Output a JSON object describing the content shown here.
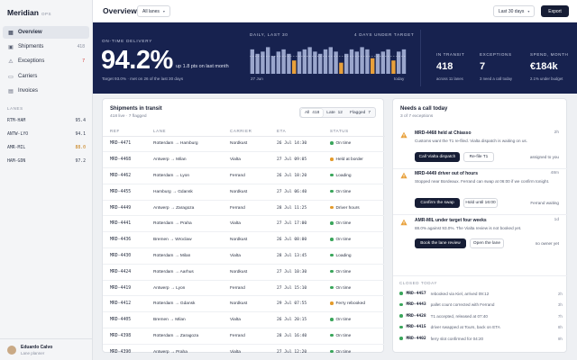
{
  "app": {
    "name": "Meridian",
    "suffix": "OPS"
  },
  "sidebar": {
    "items": [
      {
        "label": "Overview",
        "icon": "grid-icon",
        "count": "",
        "active": true
      },
      {
        "label": "Shipments",
        "icon": "box-icon",
        "count": "418",
        "active": false
      },
      {
        "label": "Exceptions",
        "icon": "warning-icon",
        "count": "7",
        "active": false,
        "count_color": "#d0322c"
      },
      {
        "label": "Carriers",
        "icon": "truck-icon",
        "count": "",
        "active": false
      },
      {
        "label": "Invoices",
        "icon": "document-icon",
        "count": "",
        "active": false
      }
    ],
    "lanes_heading": "LANES",
    "lanes": [
      {
        "code": "RTM-HAM",
        "value": "95.4"
      },
      {
        "code": "ANTW-LYO",
        "value": "94.1"
      },
      {
        "code": "AMR-MIL",
        "value": "88.0",
        "warn": true
      },
      {
        "code": "HAM-GDN",
        "value": "97.2"
      }
    ],
    "user": {
      "name": "Eduardo Calvo",
      "role": "Lane planner"
    }
  },
  "header": {
    "title": "Overview",
    "lane_filter": "All lanes",
    "date_range": "Last 30 days",
    "export_label": "Export"
  },
  "hero": {
    "ontime_label": "ON-TIME DELIVERY",
    "ontime_value": "94.2%",
    "ontime_delta": "up 1.8 pts on last month",
    "ontime_sub": "Target 93.0% · met on 26 of the last 30 days",
    "chart_label": "DAILY, LAST 30",
    "chart_label_right": "4 DAYS UNDER TARGET",
    "chart_start": "27 Jun",
    "chart_end": "today",
    "kpis": [
      {
        "label": "IN TRANSIT",
        "value": "418",
        "sub": "across 11 lanes"
      },
      {
        "label": "EXCEPTIONS",
        "value": "7",
        "sub": "3 need a call today"
      },
      {
        "label": "SPEND, MONTH",
        "value": "€184k",
        "sub": "2.1% under budget"
      }
    ]
  },
  "chart_data": {
    "type": "bar",
    "title": "",
    "target": 93.0,
    "ylim": [
      85,
      100
    ],
    "values": [
      96,
      94,
      95,
      97,
      93,
      95,
      96,
      94,
      91,
      95,
      96,
      97,
      95,
      94,
      96,
      97,
      95,
      90,
      94,
      96,
      95,
      97,
      96,
      92,
      94,
      95,
      96,
      91,
      95,
      96
    ],
    "colors": {
      "above": "#9aa6cc",
      "below": "#e8a03a"
    }
  },
  "shipments": {
    "title": "Shipments in transit",
    "subtitle": "418 live · 7 flagged",
    "filters": [
      {
        "label": "All",
        "count": "418",
        "on": true
      },
      {
        "label": "Late",
        "count": "12",
        "on": false
      },
      {
        "label": "Flagged",
        "count": "7",
        "on": false
      }
    ],
    "columns": [
      "REF",
      "LANE",
      "CARRIER",
      "ETA",
      "STATUS"
    ],
    "rows": [
      {
        "ref": "MRD-4471",
        "from": "Rotterdam",
        "to": "Hamburg",
        "carrier": "Nordkust",
        "eta": "26 Jul 14:30",
        "status": "On time",
        "tone": "green"
      },
      {
        "ref": "MRD-4468",
        "from": "Antwerp",
        "to": "Milan",
        "carrier": "Vialta",
        "eta": "27 Jul 09:05",
        "status": "Held at border",
        "tone": "amber"
      },
      {
        "ref": "MRD-4462",
        "from": "Rotterdam",
        "to": "Lyon",
        "carrier": "Ferrand",
        "eta": "26 Jul 18:20",
        "status": "Loading",
        "tone": "green"
      },
      {
        "ref": "MRD-4455",
        "from": "Hamburg",
        "to": "Gdansk",
        "carrier": "Nordkust",
        "eta": "27 Jul 06:40",
        "status": "On time",
        "tone": "green"
      },
      {
        "ref": "MRD-4449",
        "from": "Antwerp",
        "to": "Zaragoza",
        "carrier": "Ferrand",
        "eta": "28 Jul 11:25",
        "status": "Driver hours",
        "tone": "amber"
      },
      {
        "ref": "MRD-4441",
        "from": "Rotterdam",
        "to": "Praha",
        "carrier": "Vialta",
        "eta": "27 Jul 17:00",
        "status": "On time",
        "tone": "green"
      },
      {
        "ref": "MRD-4436",
        "from": "Bremen",
        "to": "Wroclaw",
        "carrier": "Nordkust",
        "eta": "26 Jul 08:00",
        "status": "On time",
        "tone": "green"
      },
      {
        "ref": "MRD-4430",
        "from": "Rotterdam",
        "to": "Milan",
        "carrier": "Vialta",
        "eta": "28 Jul 13:45",
        "status": "Loading",
        "tone": "green"
      },
      {
        "ref": "MRD-4424",
        "from": "Rotterdam",
        "to": "Aarhus",
        "carrier": "Nordkust",
        "eta": "27 Jul 10:30",
        "status": "On time",
        "tone": "green"
      },
      {
        "ref": "MRD-4419",
        "from": "Antwerp",
        "to": "Lyon",
        "carrier": "Ferrand",
        "eta": "27 Jul 15:10",
        "status": "On time",
        "tone": "green"
      },
      {
        "ref": "MRD-4412",
        "from": "Rotterdam",
        "to": "Gdansk",
        "carrier": "Nordkust",
        "eta": "29 Jul 07:55",
        "status": "Ferry rebooked",
        "tone": "amber"
      },
      {
        "ref": "MRD-4405",
        "from": "Bremen",
        "to": "Milan",
        "carrier": "Vialta",
        "eta": "26 Jul 20:15",
        "status": "On time",
        "tone": "green"
      },
      {
        "ref": "MRD-4398",
        "from": "Rotterdam",
        "to": "Zaragoza",
        "carrier": "Ferrand",
        "eta": "28 Jul 16:40",
        "status": "On time",
        "tone": "green"
      },
      {
        "ref": "MRD-4390",
        "from": "Antwerp",
        "to": "Praha",
        "carrier": "Vialta",
        "eta": "27 Jul 12:20",
        "status": "On time",
        "tone": "green"
      }
    ]
  },
  "calls": {
    "title": "Needs a call today",
    "subtitle": "3 of 7 exceptions",
    "items": [
      {
        "title": "MRD-4468 held at Chiasso",
        "time": "2h",
        "desc": "Customs want the T1 re-filed. Vialta dispatch is waiting on us.",
        "primary": "Call Vialta dispatch",
        "secondary": "Re-file T1",
        "note": "assigned to you"
      },
      {
        "title": "MRD-4449 driver out of hours",
        "time": "48m",
        "desc": "Stopped near Bordeaux. Ferrand can swap at 06:00 if we confirm tonight.",
        "primary": "Confirm the swap",
        "secondary": "Hold until 16:00",
        "note": "Ferrand waiting"
      },
      {
        "title": "AMR-MIL under target four weeks",
        "time": "1d",
        "desc": "88.0% against 93.0%. The Vialta review is not booked yet.",
        "primary": "Book the lane review",
        "secondary": "Open the lane",
        "note": "no owner yet"
      }
    ],
    "closed_heading": "CLOSED TODAY",
    "closed": [
      {
        "ref": "MRD-4457",
        "text": "rebooked via Kiel, arrived 09:12",
        "time": "2h"
      },
      {
        "ref": "MRD-4443",
        "text": "pallet count corrected with Ferrand",
        "time": "3h"
      },
      {
        "ref": "MRD-4428",
        "text": "T1 accepted, released at 07:40",
        "time": "7h"
      },
      {
        "ref": "MRD-4415",
        "text": "driver swapped at Tours, back on ETA",
        "time": "8h"
      },
      {
        "ref": "MRD-4402",
        "text": "ferry slot confirmed for 04:20",
        "time": "9h"
      }
    ]
  }
}
